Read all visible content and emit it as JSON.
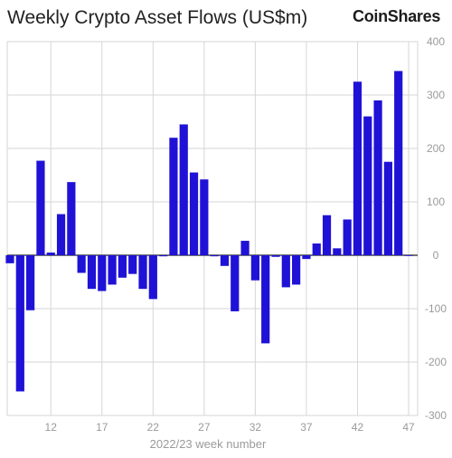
{
  "chart_data": {
    "type": "bar",
    "title": "Weekly Crypto Asset Flows (US$m)",
    "xlabel": "2022/23 week number",
    "ylabel": "",
    "x": [
      8,
      9,
      10,
      11,
      12,
      13,
      14,
      15,
      16,
      17,
      18,
      19,
      20,
      21,
      22,
      23,
      24,
      25,
      26,
      27,
      28,
      29,
      30,
      31,
      32,
      33,
      34,
      35,
      36,
      37,
      38,
      39,
      40,
      41,
      42,
      43,
      44,
      45,
      46,
      47
    ],
    "values": [
      -15,
      -255,
      -103,
      177,
      5,
      77,
      137,
      -33,
      -63,
      -67,
      -55,
      -42,
      -35,
      -63,
      -82,
      -2,
      220,
      245,
      155,
      142,
      -2,
      -20,
      -105,
      27,
      -47,
      -165,
      -3,
      -60,
      -55,
      -7,
      22,
      75,
      13,
      67,
      325,
      260,
      290,
      175,
      345,
      0
    ],
    "xticks": [
      12,
      17,
      22,
      27,
      32,
      37,
      42,
      47
    ],
    "yticks": [
      400,
      300,
      200,
      100,
      0,
      -100,
      -200,
      -300
    ],
    "ylim": [
      -300,
      400
    ],
    "grid": true,
    "bar_color": "#1f12d6",
    "brand": "CoinShares"
  }
}
